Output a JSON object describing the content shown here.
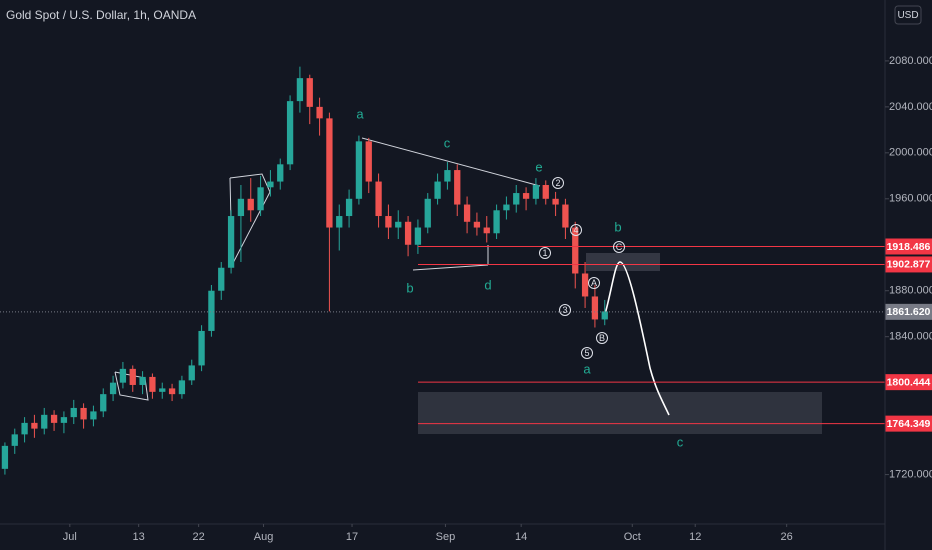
{
  "chart_data": {
    "type": "candlestick",
    "title": "Gold Spot / U.S. Dollar, 1h, OANDA",
    "currency": "USD",
    "x": [
      0,
      1,
      2,
      3,
      4,
      5,
      6,
      7,
      8,
      9,
      10,
      11,
      12,
      13,
      14,
      15,
      16,
      17,
      18,
      19,
      20,
      21,
      22,
      23,
      24,
      25,
      26,
      27,
      28,
      29,
      30,
      31,
      32,
      33,
      34,
      35,
      36,
      37,
      38,
      39,
      40,
      41,
      42,
      43,
      44,
      45,
      46,
      47,
      48,
      49,
      50,
      51,
      52,
      53,
      54,
      55,
      56,
      57,
      58,
      59,
      60,
      61
    ],
    "candles": [
      [
        1725,
        1748,
        1720,
        1745
      ],
      [
        1745,
        1760,
        1738,
        1755
      ],
      [
        1755,
        1770,
        1748,
        1765
      ],
      [
        1765,
        1772,
        1752,
        1760
      ],
      [
        1760,
        1778,
        1755,
        1772
      ],
      [
        1772,
        1776,
        1758,
        1765
      ],
      [
        1765,
        1775,
        1756,
        1770
      ],
      [
        1770,
        1785,
        1764,
        1778
      ],
      [
        1778,
        1782,
        1760,
        1768
      ],
      [
        1768,
        1780,
        1762,
        1775
      ],
      [
        1775,
        1795,
        1770,
        1790
      ],
      [
        1790,
        1806,
        1784,
        1800
      ],
      [
        1800,
        1818,
        1795,
        1812
      ],
      [
        1812,
        1815,
        1792,
        1798
      ],
      [
        1798,
        1810,
        1790,
        1805
      ],
      [
        1805,
        1808,
        1786,
        1792
      ],
      [
        1792,
        1800,
        1786,
        1795
      ],
      [
        1795,
        1799,
        1784,
        1790
      ],
      [
        1790,
        1806,
        1786,
        1802
      ],
      [
        1802,
        1820,
        1798,
        1815
      ],
      [
        1815,
        1850,
        1810,
        1845
      ],
      [
        1845,
        1885,
        1840,
        1880
      ],
      [
        1880,
        1905,
        1872,
        1900
      ],
      [
        1900,
        1950,
        1895,
        1945
      ],
      [
        1945,
        1972,
        1905,
        1960
      ],
      [
        1960,
        1978,
        1940,
        1950
      ],
      [
        1950,
        1980,
        1945,
        1970
      ],
      [
        1970,
        1985,
        1962,
        1975
      ],
      [
        1975,
        1995,
        1968,
        1990
      ],
      [
        1990,
        2050,
        1985,
        2045
      ],
      [
        2045,
        2075,
        2035,
        2065
      ],
      [
        2065,
        2068,
        2025,
        2040
      ],
      [
        2040,
        2048,
        2015,
        2030
      ],
      [
        2030,
        2035,
        1862,
        1935
      ],
      [
        1935,
        1955,
        1915,
        1945
      ],
      [
        1945,
        1968,
        1935,
        1960
      ],
      [
        1960,
        2015,
        1955,
        2010
      ],
      [
        2010,
        2013,
        1965,
        1975
      ],
      [
        1975,
        1982,
        1935,
        1945
      ],
      [
        1945,
        1955,
        1925,
        1935
      ],
      [
        1935,
        1950,
        1925,
        1940
      ],
      [
        1940,
        1945,
        1910,
        1920
      ],
      [
        1920,
        1942,
        1912,
        1935
      ],
      [
        1935,
        1965,
        1930,
        1960
      ],
      [
        1960,
        1982,
        1955,
        1975
      ],
      [
        1975,
        1992,
        1968,
        1985
      ],
      [
        1985,
        1990,
        1945,
        1955
      ],
      [
        1955,
        1962,
        1930,
        1940
      ],
      [
        1940,
        1948,
        1928,
        1935
      ],
      [
        1935,
        1945,
        1922,
        1930
      ],
      [
        1930,
        1955,
        1925,
        1950
      ],
      [
        1950,
        1962,
        1942,
        1955
      ],
      [
        1955,
        1972,
        1948,
        1965
      ],
      [
        1965,
        1970,
        1950,
        1960
      ],
      [
        1960,
        1978,
        1955,
        1972
      ],
      [
        1972,
        1976,
        1955,
        1960
      ],
      [
        1960,
        1966,
        1945,
        1955
      ],
      [
        1955,
        1960,
        1925,
        1935
      ],
      [
        1935,
        1940,
        1882,
        1895
      ],
      [
        1895,
        1905,
        1865,
        1875
      ],
      [
        1875,
        1885,
        1848,
        1855
      ],
      [
        1855,
        1872,
        1850,
        1862
      ]
    ],
    "up_color": "#26a69a",
    "down_color": "#ef5350",
    "xlim": [
      0,
      90
    ],
    "xticks": [
      {
        "value": 7.1,
        "label": "Jul"
      },
      {
        "value": 14.1,
        "label": "13"
      },
      {
        "value": 20.2,
        "label": "22"
      },
      {
        "value": 26.8,
        "label": "Aug"
      },
      {
        "value": 35.8,
        "label": "17"
      },
      {
        "value": 45.3,
        "label": "Sep"
      },
      {
        "value": 53,
        "label": "14"
      },
      {
        "value": 64.3,
        "label": "Oct"
      },
      {
        "value": 70.7,
        "label": "12"
      },
      {
        "value": 80,
        "label": "26"
      }
    ],
    "ylim": [
      1677,
      2133
    ],
    "yticks": [
      {
        "value": 1720,
        "label": "1720.000"
      },
      {
        "value": 1840,
        "label": "1840.000"
      },
      {
        "value": 1880,
        "label": "1880.000"
      },
      {
        "value": 1960,
        "label": "1960.000"
      },
      {
        "value": 2000,
        "label": "2000.000"
      },
      {
        "value": 2040,
        "label": "2040.000"
      },
      {
        "value": 2080,
        "label": "2080.000"
      }
    ],
    "grid": false,
    "levels": [
      {
        "value": 1918.486,
        "label": "1918.486",
        "color": "#f23645"
      },
      {
        "value": 1902.877,
        "label": "1902.877",
        "color": "#f23645"
      },
      {
        "value": 1861.62,
        "label": "1861.620",
        "color": "#787b86"
      },
      {
        "value": 1800.444,
        "label": "1800.444",
        "color": "#f23645"
      },
      {
        "value": 1764.349,
        "label": "1764.349",
        "color": "#f23645"
      }
    ],
    "wave_labels": [
      "a",
      "b",
      "c",
      "d",
      "e",
      "b",
      "a",
      "c"
    ],
    "wave_counts": [
      "1",
      "2",
      "3",
      "4",
      "5",
      "A",
      "B",
      "C"
    ]
  }
}
